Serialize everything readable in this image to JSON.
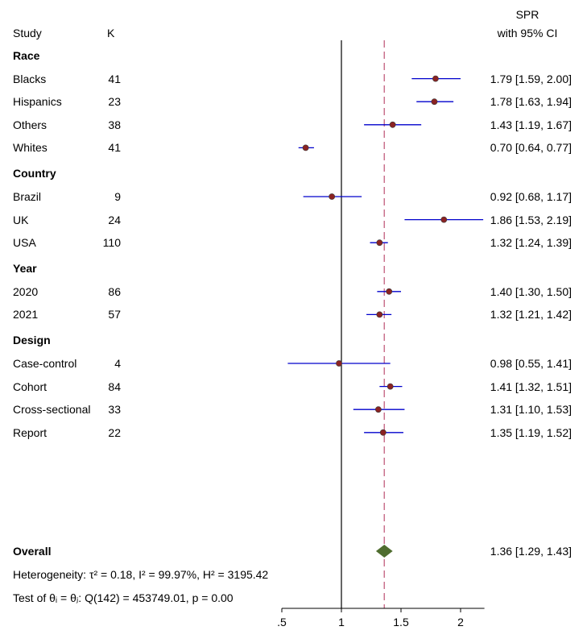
{
  "header": {
    "study_label": "Study",
    "k_label": "K",
    "effect_label": "SPR",
    "ci_label": "with 95% CI"
  },
  "chart_data": {
    "type": "forest",
    "effect_measure": "SPR",
    "xlim": [
      0.5,
      2.2
    ],
    "xticks": [
      {
        "value": 0.5,
        "label": ".5"
      },
      {
        "value": 1,
        "label": "1"
      },
      {
        "value": 1.5,
        "label": "1.5"
      },
      {
        "value": 2,
        "label": "2"
      }
    ],
    "null_line": 1,
    "overall_line": 1.36,
    "groups": [
      {
        "name": "Race",
        "rows": [
          {
            "label": "Blacks",
            "k": "41",
            "est": 1.79,
            "lo": 1.59,
            "hi": 2.0,
            "ci_text": "1.79 [1.59, 2.00]"
          },
          {
            "label": "Hispanics",
            "k": "23",
            "est": 1.78,
            "lo": 1.63,
            "hi": 1.94,
            "ci_text": "1.78 [1.63, 1.94]"
          },
          {
            "label": "Others",
            "k": "38",
            "est": 1.43,
            "lo": 1.19,
            "hi": 1.67,
            "ci_text": "1.43 [1.19, 1.67]"
          },
          {
            "label": "Whites",
            "k": "41",
            "est": 0.7,
            "lo": 0.64,
            "hi": 0.77,
            "ci_text": "0.70 [0.64, 0.77]"
          }
        ]
      },
      {
        "name": "Country",
        "rows": [
          {
            "label": "Brazil",
            "k": "9",
            "est": 0.92,
            "lo": 0.68,
            "hi": 1.17,
            "ci_text": "0.92 [0.68, 1.17]"
          },
          {
            "label": "UK",
            "k": "24",
            "est": 1.86,
            "lo": 1.53,
            "hi": 2.19,
            "ci_text": "1.86 [1.53, 2.19]"
          },
          {
            "label": "USA",
            "k": "110",
            "est": 1.32,
            "lo": 1.24,
            "hi": 1.39,
            "ci_text": "1.32 [1.24, 1.39]"
          }
        ]
      },
      {
        "name": "Year",
        "rows": [
          {
            "label": "2020",
            "k": "86",
            "est": 1.4,
            "lo": 1.3,
            "hi": 1.5,
            "ci_text": "1.40 [1.30, 1.50]"
          },
          {
            "label": "2021",
            "k": "57",
            "est": 1.32,
            "lo": 1.21,
            "hi": 1.42,
            "ci_text": "1.32 [1.21, 1.42]"
          }
        ]
      },
      {
        "name": "Design",
        "rows": [
          {
            "label": "Case-control",
            "k": "4",
            "est": 0.98,
            "lo": 0.55,
            "hi": 1.41,
            "ci_text": "0.98 [0.55, 1.41]"
          },
          {
            "label": "Cohort",
            "k": "84",
            "est": 1.41,
            "lo": 1.32,
            "hi": 1.51,
            "ci_text": "1.41 [1.32, 1.51]"
          },
          {
            "label": "Cross-sectional",
            "k": "33",
            "est": 1.31,
            "lo": 1.1,
            "hi": 1.53,
            "ci_text": "1.31 [1.10, 1.53]"
          },
          {
            "label": "Report",
            "k": "22",
            "est": 1.35,
            "lo": 1.19,
            "hi": 1.52,
            "ci_text": "1.35 [1.19, 1.52]"
          }
        ]
      }
    ],
    "overall": {
      "label": "Overall",
      "est": 1.36,
      "lo": 1.29,
      "hi": 1.43,
      "ci_text": "1.36 [1.29, 1.43]"
    },
    "heterogeneity_text": "Heterogeneity: τ² = 0.18, I² = 99.97%, H² = 3195.42",
    "test_text": "Test of θᵢ = θⱼ: Q(142) = 453749.01, p = 0.00",
    "colors": {
      "ci_line": "#0000cc",
      "point": "#8b2323",
      "point_outline": "#3a3a3a",
      "overall_diamond": "#4f6d2f",
      "overall_line": "#c9718d",
      "null_line": "#000000",
      "axis": "#000000"
    }
  }
}
